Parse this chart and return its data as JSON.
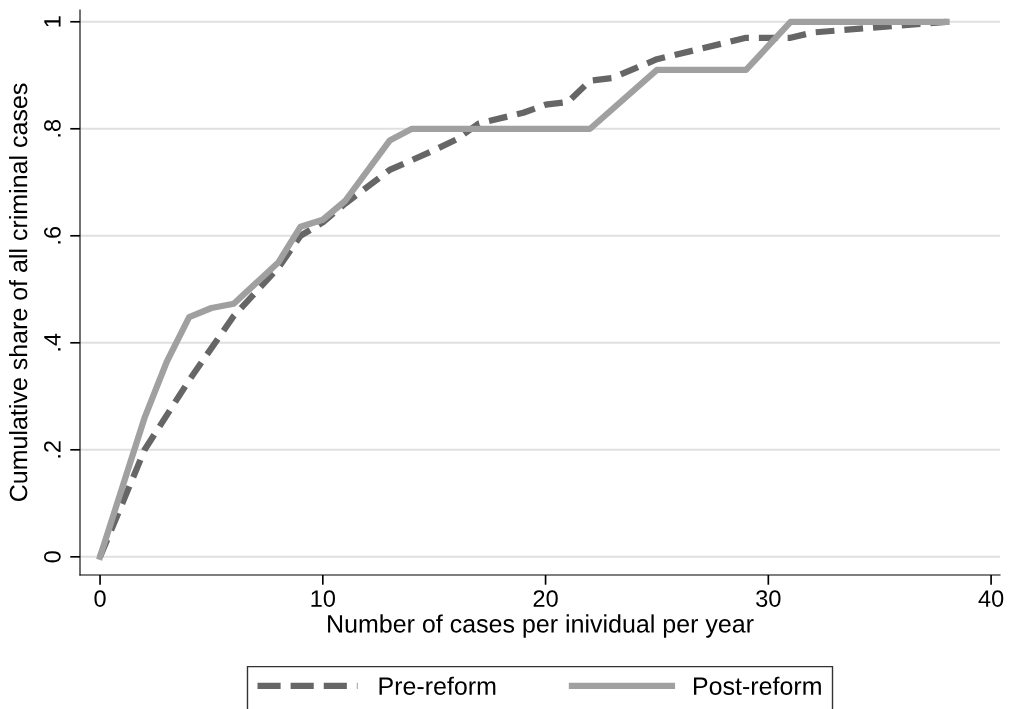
{
  "chart_data": {
    "type": "line",
    "xlabel": "Number of cases per inividual per year",
    "ylabel": "Cumulative share of all criminal cases",
    "xlim": [
      -0.9,
      40.4
    ],
    "xticks": [
      0,
      10,
      20,
      30,
      40
    ],
    "ylim": [
      -0.034,
      1.022
    ],
    "yticks": [
      {
        "value": 0,
        "label": "0"
      },
      {
        "value": 0.2,
        "label": ".2"
      },
      {
        "value": 0.4,
        "label": ".4"
      },
      {
        "value": 0.6,
        "label": ".6"
      },
      {
        "value": 0.8,
        "label": ".8"
      },
      {
        "value": 1,
        "label": "1"
      }
    ],
    "grid": "y",
    "legend": "bottom",
    "series": [
      {
        "name": "Pre-reform",
        "color": "#666666",
        "line_style": "dashed",
        "x": [
          0,
          1,
          2,
          4,
          6,
          8,
          9,
          10,
          11,
          13,
          15,
          16,
          17,
          19,
          20,
          21,
          22,
          23,
          25,
          27,
          29,
          31,
          32,
          35,
          38
        ],
        "values": [
          0,
          0.1,
          0.2,
          0.33,
          0.45,
          0.54,
          0.6,
          0.625,
          0.66,
          0.723,
          0.76,
          0.78,
          0.81,
          0.83,
          0.845,
          0.85,
          0.89,
          0.895,
          0.93,
          0.95,
          0.97,
          0.97,
          0.98,
          0.99,
          1
        ]
      },
      {
        "name": "Post-reform",
        "color": "#a0a0a0",
        "line_style": "solid",
        "x": [
          0,
          2,
          3,
          4,
          5,
          6,
          8,
          9,
          10,
          11,
          13,
          14,
          22,
          25,
          29,
          31,
          38
        ],
        "values": [
          0,
          0.26,
          0.365,
          0.448,
          0.465,
          0.473,
          0.55,
          0.617,
          0.63,
          0.665,
          0.778,
          0.8,
          0.8,
          0.91,
          0.91,
          1,
          1
        ]
      }
    ]
  }
}
